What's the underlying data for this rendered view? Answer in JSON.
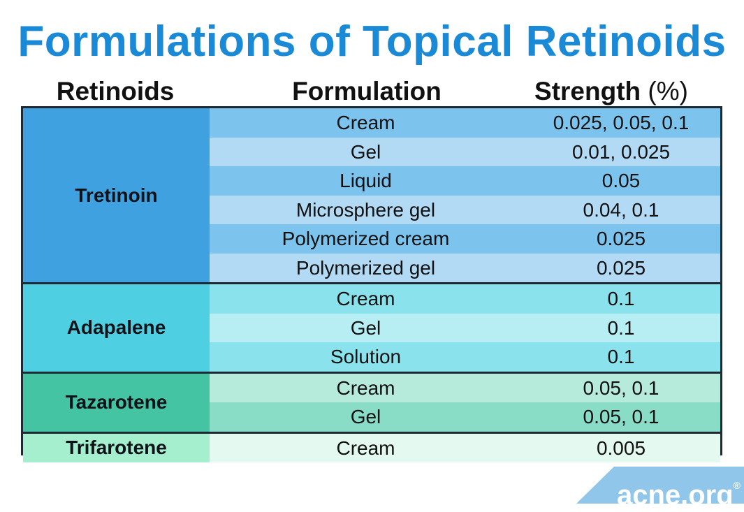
{
  "title": "Formulations of Topical Retinoids",
  "headers": {
    "retinoids": "Retinoids",
    "formulation": "Formulation",
    "strength": "Strength",
    "strength_unit": "(%)"
  },
  "groups": [
    {
      "name": "Tretinoin",
      "name_color": "#3fa1e0",
      "row_colors": [
        "#7cc3ee",
        "#b3daf5"
      ],
      "rows": [
        {
          "formulation": "Cream",
          "strength": "0.025, 0.05, 0.1"
        },
        {
          "formulation": "Gel",
          "strength": "0.01, 0.025"
        },
        {
          "formulation": "Liquid",
          "strength": "0.05"
        },
        {
          "formulation": "Microsphere gel",
          "strength": "0.04, 0.1"
        },
        {
          "formulation": "Polymerized cream",
          "strength": "0.025"
        },
        {
          "formulation": "Polymerized gel",
          "strength": "0.025"
        }
      ]
    },
    {
      "name": "Adapalene",
      "name_color": "#4fd0e2",
      "row_colors": [
        "#8ae3ec",
        "#b7eef3"
      ],
      "rows": [
        {
          "formulation": "Cream",
          "strength": "0.1"
        },
        {
          "formulation": "Gel",
          "strength": "0.1"
        },
        {
          "formulation": "Solution",
          "strength": "0.1"
        }
      ]
    },
    {
      "name": "Tazarotene",
      "name_color": "#45c4a3",
      "row_colors": [
        "#b6eadb",
        "#89dcc6"
      ],
      "rows": [
        {
          "formulation": "Cream",
          "strength": "0.05, 0.1"
        },
        {
          "formulation": "Gel",
          "strength": "0.05, 0.1"
        }
      ]
    },
    {
      "name": "Trifarotene",
      "name_color": "#a5efcf",
      "row_colors": [
        "#e4faf1"
      ],
      "rows": [
        {
          "formulation": "Cream",
          "strength": "0.005"
        }
      ]
    }
  ],
  "brand": {
    "logo_text": "acne.org",
    "registered_mark": "®",
    "band_color": "#8fc6ea"
  }
}
